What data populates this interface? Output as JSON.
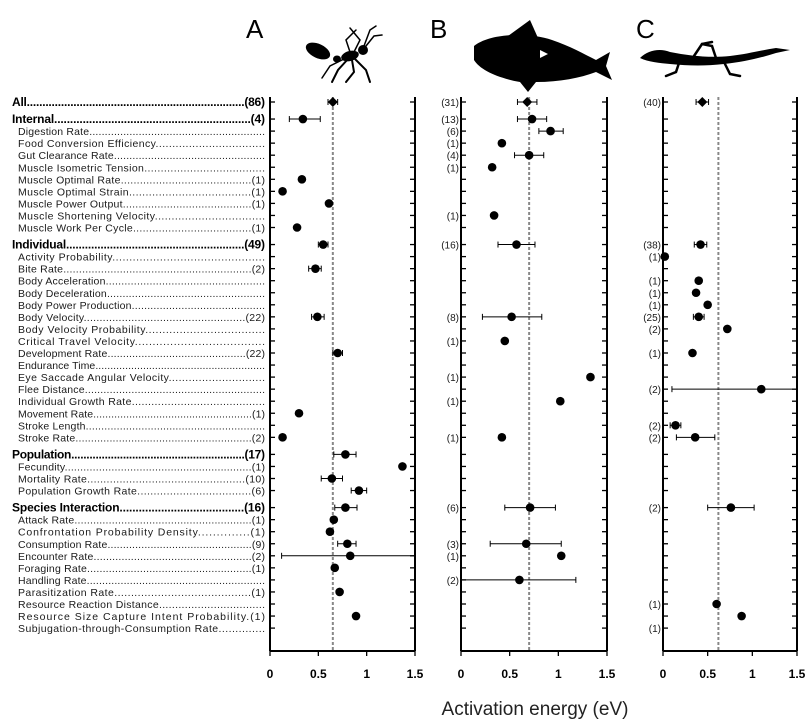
{
  "panels": [
    {
      "letter": "A",
      "organism": "ant-silhouette"
    },
    {
      "letter": "B",
      "organism": "fish-silhouette"
    },
    {
      "letter": "C",
      "organism": "lizard-silhouette"
    }
  ],
  "rows": [
    {
      "label": "All",
      "type": "section",
      "counts": [
        "(86)",
        "(31)",
        "(40)"
      ]
    },
    {
      "label": "Internal",
      "type": "section",
      "counts": [
        "(4)",
        "(13)",
        ""
      ]
    },
    {
      "label": "Digestion Rate",
      "type": "item",
      "counts": [
        "",
        "(6)",
        ""
      ]
    },
    {
      "label": "Food Conversion Efficiency",
      "type": "item",
      "counts": [
        "",
        "(1)",
        ""
      ]
    },
    {
      "label": "Gut Clearance Rate",
      "type": "item",
      "counts": [
        "",
        "(4)",
        ""
      ]
    },
    {
      "label": "Muscle Isometric Tension",
      "type": "item",
      "counts": [
        "",
        "(1)",
        ""
      ]
    },
    {
      "label": "Muscle Optimal Rate",
      "type": "item",
      "counts": [
        "(1)",
        "",
        ""
      ]
    },
    {
      "label": "Muscle Optimal Strain",
      "type": "item",
      "counts": [
        "(1)",
        "",
        ""
      ]
    },
    {
      "label": "Muscle Power Output",
      "type": "item",
      "counts": [
        "(1)",
        "",
        ""
      ]
    },
    {
      "label": "Muscle Shortening Velocity",
      "type": "item",
      "counts": [
        "",
        "(1)",
        ""
      ]
    },
    {
      "label": "Muscle Work Per Cycle",
      "type": "item",
      "counts": [
        "(1)",
        "",
        ""
      ]
    },
    {
      "label": "Individual",
      "type": "section",
      "counts": [
        "(49)",
        "(16)",
        "(38)"
      ]
    },
    {
      "label": "Activity Probability",
      "type": "item",
      "counts": [
        "",
        "",
        "(1)"
      ]
    },
    {
      "label": "Bite Rate",
      "type": "item",
      "counts": [
        "(2)",
        "",
        ""
      ]
    },
    {
      "label": "Body Acceleration",
      "type": "item",
      "counts": [
        "",
        "",
        "(1)"
      ]
    },
    {
      "label": "Body Deceleration",
      "type": "item",
      "counts": [
        "",
        "",
        "(1)"
      ]
    },
    {
      "label": "Body Power Production",
      "type": "item",
      "counts": [
        "",
        "",
        "(1)"
      ]
    },
    {
      "label": "Body Velocity",
      "type": "item",
      "counts": [
        "(22)",
        "(8)",
        "(25)"
      ]
    },
    {
      "label": "Body Velocity Probability",
      "type": "item",
      "counts": [
        "",
        "",
        "(2)"
      ]
    },
    {
      "label": "Critical Travel Velocity",
      "type": "item",
      "counts": [
        "",
        "(1)",
        ""
      ]
    },
    {
      "label": "Development Rate",
      "type": "item",
      "counts": [
        "(22)",
        "",
        "(1)"
      ]
    },
    {
      "label": "Endurance Time",
      "type": "item",
      "counts": [
        "",
        "",
        ""
      ]
    },
    {
      "label": "Eye Saccade Angular Velocity",
      "type": "item",
      "counts": [
        "",
        "(1)",
        ""
      ]
    },
    {
      "label": "Flee Distance",
      "type": "item",
      "counts": [
        "",
        "",
        "(2)"
      ]
    },
    {
      "label": "Individual Growth Rate",
      "type": "item",
      "counts": [
        "",
        "(1)",
        ""
      ]
    },
    {
      "label": "Movement Rate",
      "type": "item",
      "counts": [
        "(1)",
        "",
        ""
      ]
    },
    {
      "label": "Stroke Length",
      "type": "item",
      "counts": [
        "",
        "",
        "(2)"
      ]
    },
    {
      "label": "Stroke Rate",
      "type": "item",
      "counts": [
        "(2)",
        "(1)",
        "(2)"
      ]
    },
    {
      "label": "Population",
      "type": "section",
      "counts": [
        "(17)",
        "",
        ""
      ]
    },
    {
      "label": "Fecundity",
      "type": "item",
      "counts": [
        "(1)",
        "",
        ""
      ]
    },
    {
      "label": "Mortality Rate",
      "type": "item",
      "counts": [
        "(10)",
        "",
        ""
      ]
    },
    {
      "label": "Population Growth Rate",
      "type": "item",
      "counts": [
        "(6)",
        "",
        ""
      ]
    },
    {
      "label": "Species Interaction",
      "type": "section",
      "counts": [
        "(16)",
        "(6)",
        "(2)"
      ]
    },
    {
      "label": "Attack Rate",
      "type": "item",
      "counts": [
        "(1)",
        "",
        ""
      ]
    },
    {
      "label": "Confrontation Probability Density",
      "type": "item",
      "counts": [
        "(1)",
        "",
        ""
      ]
    },
    {
      "label": "Consumption Rate",
      "type": "item",
      "counts": [
        "(9)",
        "(3)",
        ""
      ]
    },
    {
      "label": "Encounter Rate",
      "type": "item",
      "counts": [
        "(2)",
        "(1)",
        ""
      ]
    },
    {
      "label": "Foraging Rate",
      "type": "item",
      "counts": [
        "(1)",
        "",
        ""
      ]
    },
    {
      "label": "Handling Rate",
      "type": "item",
      "counts": [
        "",
        "(2)",
        ""
      ]
    },
    {
      "label": "Parasitization Rate",
      "type": "item",
      "counts": [
        "(1)",
        "",
        ""
      ]
    },
    {
      "label": "Resource Reaction Distance",
      "type": "item",
      "counts": [
        "",
        "",
        "(1)"
      ]
    },
    {
      "label": "Resource Size Capture Intent Probability",
      "type": "item",
      "counts": [
        "(1)",
        "",
        ""
      ]
    },
    {
      "label": "Subjugation-through-Consumption Rate",
      "type": "item",
      "counts": [
        "",
        "",
        "(1)"
      ]
    }
  ],
  "chart_data": {
    "type": "scatter",
    "xlabel": "Activation energy (eV)",
    "xlim": [
      0,
      1.5
    ],
    "xticks": [
      "0",
      "0.5",
      "1",
      "1.5"
    ],
    "reference_line": [
      0.65,
      0.7,
      0.62
    ],
    "series": [
      {
        "name": "A",
        "points": [
          {
            "row": 0,
            "x": 0.65,
            "lo": 0.6,
            "hi": 0.7
          },
          {
            "row": 1,
            "x": 0.34,
            "lo": 0.2,
            "hi": 0.52
          },
          {
            "row": 6,
            "x": 0.33
          },
          {
            "row": 7,
            "x": 0.13
          },
          {
            "row": 8,
            "x": 0.61
          },
          {
            "row": 10,
            "x": 0.28
          },
          {
            "row": 11,
            "x": 0.55,
            "lo": 0.5,
            "hi": 0.6
          },
          {
            "row": 13,
            "x": 0.47,
            "lo": 0.4,
            "hi": 0.53
          },
          {
            "row": 17,
            "x": 0.49,
            "lo": 0.43,
            "hi": 0.56
          },
          {
            "row": 20,
            "x": 0.7,
            "lo": 0.65,
            "hi": 0.75
          },
          {
            "row": 25,
            "x": 0.3
          },
          {
            "row": 27,
            "x": 0.13
          },
          {
            "row": 28,
            "x": 0.78,
            "lo": 0.66,
            "hi": 0.89
          },
          {
            "row": 29,
            "x": 1.37
          },
          {
            "row": 30,
            "x": 0.64,
            "lo": 0.53,
            "hi": 0.75
          },
          {
            "row": 31,
            "x": 0.92,
            "lo": 0.84,
            "hi": 1.0
          },
          {
            "row": 32,
            "x": 0.78,
            "lo": 0.67,
            "hi": 0.9
          },
          {
            "row": 33,
            "x": 0.66
          },
          {
            "row": 34,
            "x": 0.62
          },
          {
            "row": 35,
            "x": 0.8,
            "lo": 0.7,
            "hi": 0.89
          },
          {
            "row": 36,
            "x": 0.83,
            "lo": 0.12,
            "hi": 1.5
          },
          {
            "row": 37,
            "x": 0.67
          },
          {
            "row": 39,
            "x": 0.72
          },
          {
            "row": 41,
            "x": 0.89
          }
        ]
      },
      {
        "name": "B",
        "points": [
          {
            "row": 0,
            "x": 0.68,
            "lo": 0.58,
            "hi": 0.78
          },
          {
            "row": 1,
            "x": 0.73,
            "lo": 0.58,
            "hi": 0.88
          },
          {
            "row": 2,
            "x": 0.92,
            "lo": 0.8,
            "hi": 1.05
          },
          {
            "row": 3,
            "x": 0.42
          },
          {
            "row": 4,
            "x": 0.7,
            "lo": 0.55,
            "hi": 0.85
          },
          {
            "row": 5,
            "x": 0.32
          },
          {
            "row": 9,
            "x": 0.34
          },
          {
            "row": 11,
            "x": 0.57,
            "lo": 0.38,
            "hi": 0.76
          },
          {
            "row": 17,
            "x": 0.52,
            "lo": 0.22,
            "hi": 0.83
          },
          {
            "row": 19,
            "x": 0.45
          },
          {
            "row": 22,
            "x": 1.33
          },
          {
            "row": 24,
            "x": 1.02
          },
          {
            "row": 27,
            "x": 0.42
          },
          {
            "row": 32,
            "x": 0.71,
            "lo": 0.45,
            "hi": 0.97
          },
          {
            "row": 35,
            "x": 0.67,
            "lo": 0.3,
            "hi": 1.03
          },
          {
            "row": 36,
            "x": 1.03
          },
          {
            "row": 38,
            "x": 0.6,
            "lo": 0.0,
            "hi": 1.18
          }
        ]
      },
      {
        "name": "C",
        "points": [
          {
            "row": 0,
            "x": 0.44,
            "lo": 0.37,
            "hi": 0.51
          },
          {
            "row": 11,
            "x": 0.42,
            "lo": 0.35,
            "hi": 0.49
          },
          {
            "row": 12,
            "x": 0.02
          },
          {
            "row": 14,
            "x": 0.4
          },
          {
            "row": 15,
            "x": 0.37
          },
          {
            "row": 16,
            "x": 0.5
          },
          {
            "row": 17,
            "x": 0.4,
            "lo": 0.34,
            "hi": 0.46
          },
          {
            "row": 18,
            "x": 0.72
          },
          {
            "row": 20,
            "x": 0.33
          },
          {
            "row": 23,
            "x": 1.1,
            "lo": 0.1,
            "hi": 1.5
          },
          {
            "row": 26,
            "x": 0.14,
            "lo": 0.08,
            "hi": 0.2
          },
          {
            "row": 27,
            "x": 0.36,
            "lo": 0.15,
            "hi": 0.58
          },
          {
            "row": 32,
            "x": 0.76,
            "lo": 0.5,
            "hi": 1.02
          },
          {
            "row": 40,
            "x": 0.6
          },
          {
            "row": 41,
            "x": 0.88
          }
        ]
      }
    ]
  }
}
